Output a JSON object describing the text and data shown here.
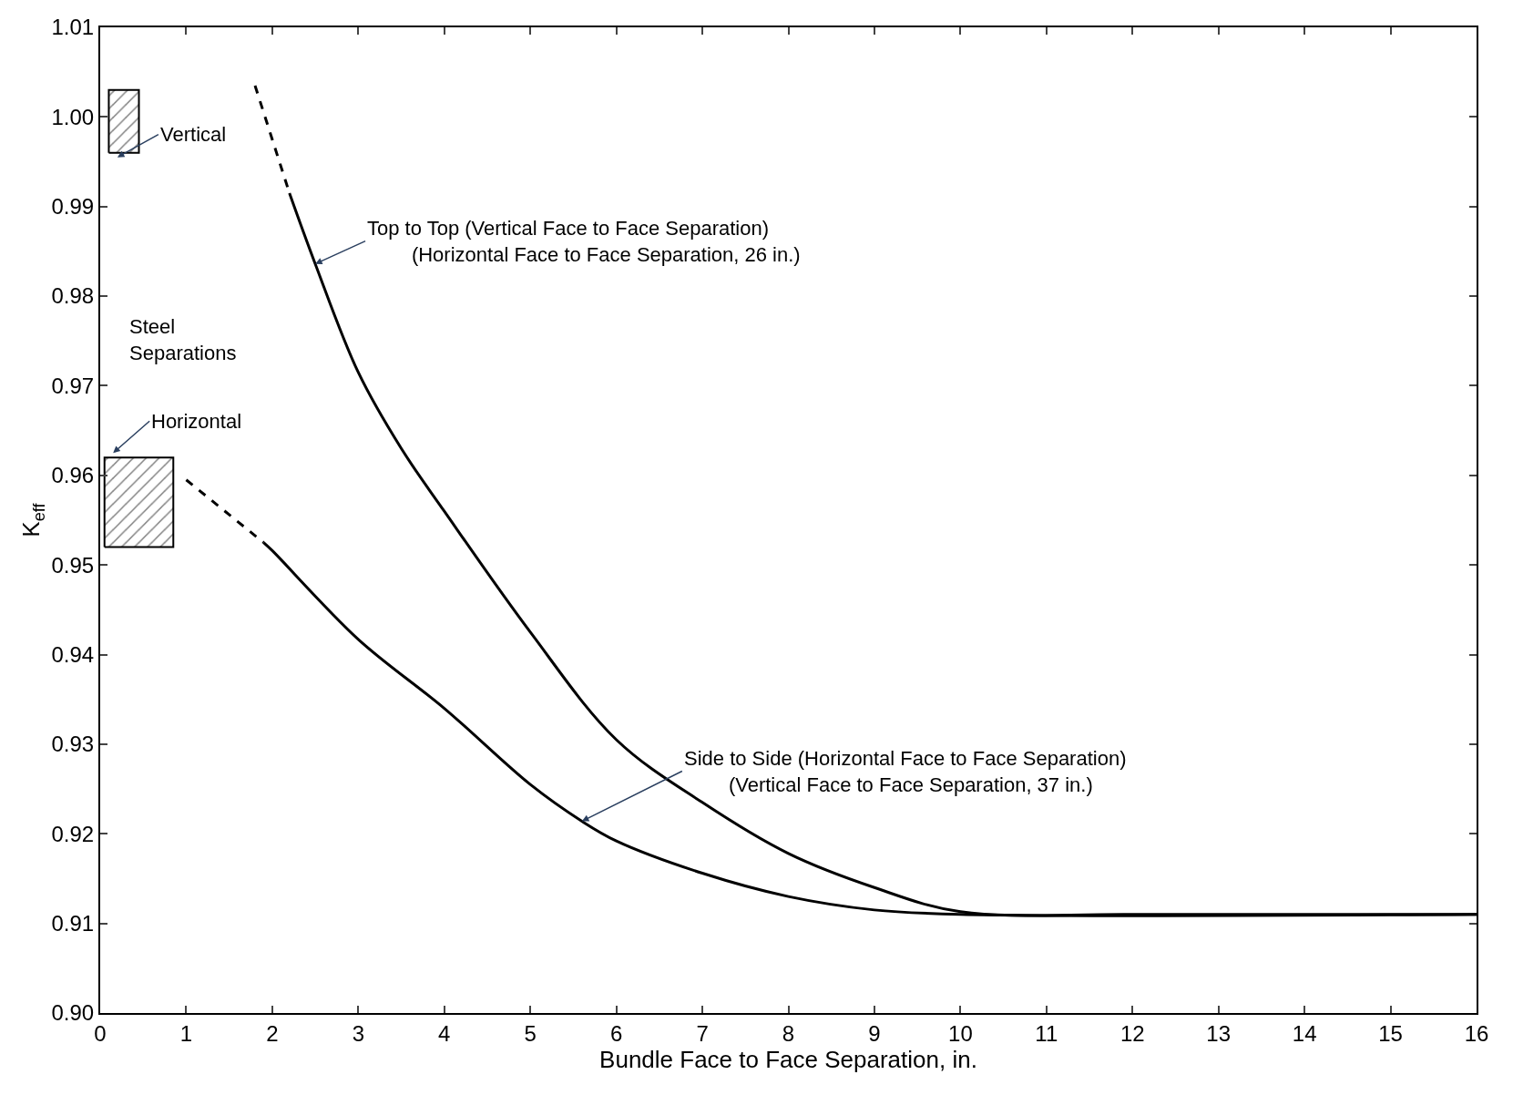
{
  "chart_data": {
    "type": "line",
    "xlabel": "Bundle Face to Face Separation, in.",
    "ylabel": "K$_{eff}$",
    "xlim": [
      0,
      16
    ],
    "ylim": [
      0.9,
      1.01
    ],
    "xticks": [
      0,
      1,
      2,
      3,
      4,
      5,
      6,
      7,
      8,
      9,
      10,
      11,
      12,
      13,
      14,
      15,
      16
    ],
    "yticks": [
      {
        "value": 0.9,
        "label": "0.90"
      },
      0.91,
      0.92,
      0.93,
      0.94,
      0.95,
      0.96,
      0.97,
      0.98,
      0.99,
      {
        "value": 1.0,
        "label": "1.00"
      },
      1.01
    ],
    "series": [
      {
        "line_style": "dashed",
        "color": "#000000",
        "x": [
          1.8,
          2.2
        ],
        "values": [
          1.0035,
          0.9915
        ]
      },
      {
        "line_style": "solid",
        "color": "#000000",
        "x": [
          2.2,
          2.5,
          3,
          3.5,
          4,
          5,
          6,
          7,
          8,
          9,
          10,
          12,
          16
        ],
        "values": [
          0.9915,
          0.9836,
          0.9715,
          0.963,
          0.956,
          0.9425,
          0.9305,
          0.9235,
          0.9178,
          0.914,
          0.9113,
          0.911,
          0.911
        ]
      },
      {
        "line_style": "dashed",
        "color": "#000000",
        "x": [
          1.0,
          1.9
        ],
        "values": [
          0.9595,
          0.9525
        ]
      },
      {
        "line_style": "solid",
        "color": "#000000",
        "x": [
          1.9,
          2,
          3,
          4,
          5,
          5.6,
          6,
          7,
          8,
          9,
          10,
          16
        ],
        "values": [
          0.9525,
          0.9516,
          0.9417,
          0.934,
          0.9255,
          0.9214,
          0.9192,
          0.9156,
          0.913,
          0.9115,
          0.911,
          0.911
        ]
      },
      {
        "type": "area",
        "color": "#000000",
        "x": [
          0.1,
          0.1,
          0.45,
          0.45,
          0.1
        ],
        "values": [
          0.996,
          1.003,
          1.003,
          0.996,
          0.996
        ]
      },
      {
        "type": "area",
        "color": "#000000",
        "x": [
          0.05,
          0.05,
          0.85,
          0.85,
          0.05
        ],
        "values": [
          0.952,
          0.962,
          0.962,
          0.952,
          0.952
        ]
      }
    ],
    "annotations": [
      {
        "text": "Vertical",
        "x": 0.2,
        "y": 0.9955
      },
      "Steel\nSeparations",
      {
        "text": "Horizontal",
        "x": 0.15,
        "y": 0.9625
      },
      {
        "text": "Top to Top (Vertical Face to Face Separation)\n        (Horizontal Face to Face Separation, 26 in.)",
        "x": 2.5,
        "y": 0.9836
      },
      {
        "text": "Side to Side (Horizontal Face to Face Separation)\n        (Vertical Face to Face Separation, 37 in.)",
        "x": 5.6,
        "y": 0.9214
      }
    ]
  }
}
